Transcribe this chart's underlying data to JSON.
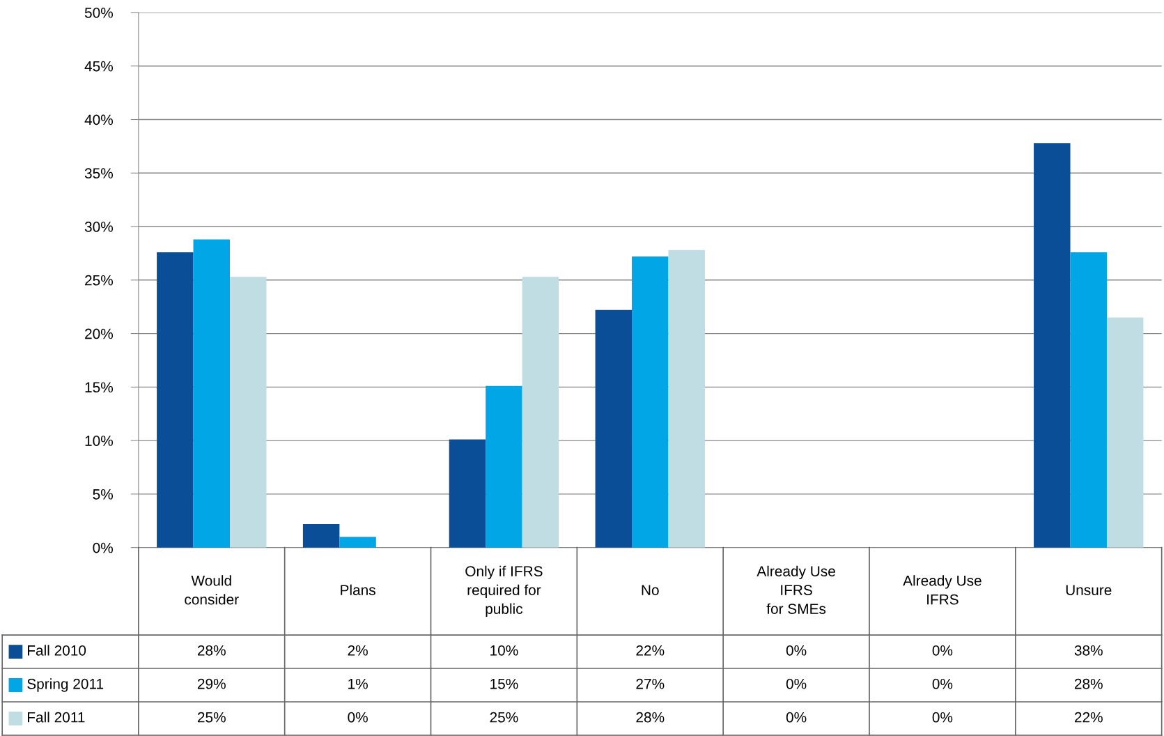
{
  "chart_data": {
    "type": "bar",
    "categories": [
      "Would\nconsider",
      "Plans",
      "Only if IFRS\nrequired for\npublic",
      "No",
      "Already Use\nIFRS\nfor SMEs",
      "Already Use\nIFRS",
      "Unsure"
    ],
    "series": [
      {
        "name": "Fall 2010",
        "color": "#0b4e98",
        "values": [
          27.6,
          2.2,
          10.1,
          22.2,
          0,
          0,
          37.8
        ],
        "value_labels": [
          "28%",
          "2%",
          "10%",
          "22%",
          "0%",
          "0%",
          "38%"
        ]
      },
      {
        "name": "Spring 2011",
        "color": "#00a6e6",
        "values": [
          28.8,
          1.0,
          15.1,
          27.2,
          0,
          0,
          27.6
        ],
        "value_labels": [
          "29%",
          "1%",
          "15%",
          "27%",
          "0%",
          "0%",
          "28%"
        ]
      },
      {
        "name": "Fall 2011",
        "color": "#bfdde3",
        "values": [
          25.3,
          0,
          25.3,
          27.8,
          0,
          0,
          21.5
        ],
        "value_labels": [
          "25%",
          "0%",
          "25%",
          "28%",
          "0%",
          "0%",
          "22%"
        ]
      }
    ],
    "ylim": [
      0,
      50
    ],
    "yticks": [
      {
        "value": 0,
        "label": "0%"
      },
      {
        "value": 5,
        "label": "5%"
      },
      {
        "value": 10,
        "label": "10%"
      },
      {
        "value": 15,
        "label": "15%"
      },
      {
        "value": 20,
        "label": "20%"
      },
      {
        "value": 25,
        "label": "25%"
      },
      {
        "value": 30,
        "label": "30%"
      },
      {
        "value": 35,
        "label": "35%"
      },
      {
        "value": 40,
        "label": "40%"
      },
      {
        "value": 45,
        "label": "45%"
      },
      {
        "value": 50,
        "label": "50%"
      }
    ],
    "grid": "y",
    "legend": "bottom left"
  }
}
